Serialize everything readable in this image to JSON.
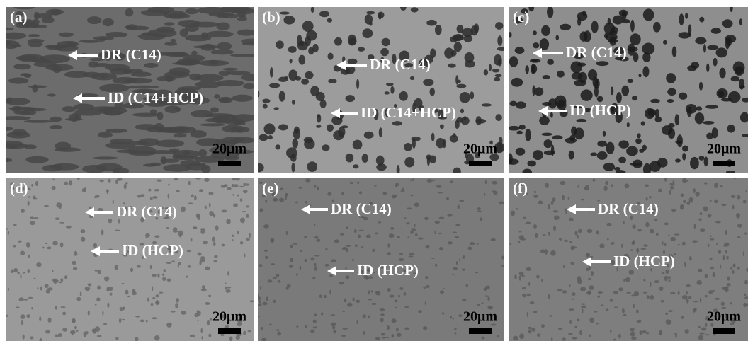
{
  "panels": [
    {
      "label": "(a)",
      "annotations": [
        "DR (C14)",
        "ID (C14+HCP)"
      ],
      "scale_bar": "20μm"
    },
    {
      "label": "(b)",
      "annotations": [
        "DR (C14)",
        "ID (C14+HCP)"
      ],
      "scale_bar": "20μm"
    },
    {
      "label": "(c)",
      "annotations": [
        "DR (C14)",
        "ID (HCP)"
      ],
      "scale_bar": "20μm"
    },
    {
      "label": "(d)",
      "annotations": [
        "DR (C14)",
        "ID (HCP)"
      ],
      "scale_bar": "20μm"
    },
    {
      "label": "(e)",
      "annotations": [
        "DR (C14)",
        "ID (HCP)"
      ],
      "scale_bar": "20μm"
    },
    {
      "label": "(f)",
      "annotations": [
        "DR (C14)",
        "ID (HCP)"
      ],
      "scale_bar": "20μm"
    }
  ]
}
